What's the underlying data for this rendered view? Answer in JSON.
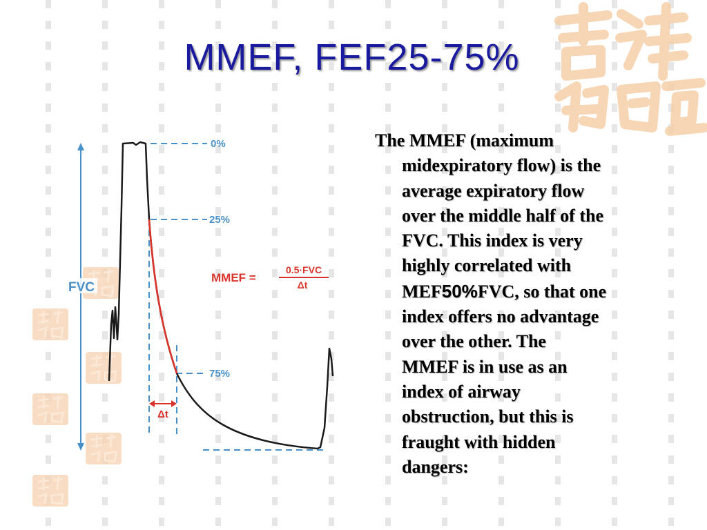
{
  "slide": {
    "title": "MMEF, FEF25-75%",
    "paragraph": {
      "lines": [
        "The MMEF (maximum",
        "midexpiratory flow) is the",
        "average expiratory flow",
        "over the middle half of the",
        "FVC. This index is very",
        "highly correlated with"
      ],
      "mef_prefix": "MEF",
      "mef_percent": "50%",
      "mef_suffix": "FVC, so that one",
      "lines_after": [
        "index offers no advantage",
        "over the other. The",
        "MMEF is in use as an",
        "index of airway",
        "obstruction, but this is",
        "fraught with hidden",
        "dangers:"
      ]
    }
  },
  "diagram": {
    "label_0": "0%",
    "label_25": "25%",
    "label_75": "75%",
    "fvc_label": "FVC",
    "formula_lhs": "MMEF =",
    "formula_numerator": "0.5·FVC",
    "formula_denominator": "Δt",
    "delta_t_label": "Δt",
    "colors": {
      "curve": "#1a1a1a",
      "highlight": "#d9342b",
      "guides": "#4a90c8",
      "formula": "#d9342b"
    }
  },
  "decor": {
    "seal_icon": "chinese-seal-stamp",
    "seal_color": "#f5c9a3"
  }
}
